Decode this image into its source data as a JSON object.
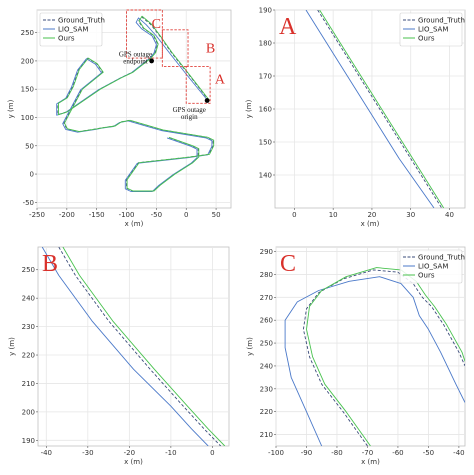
{
  "figure": {
    "colors": {
      "ground_truth": "#3a4b7a",
      "lio_sam": "#4b79c9",
      "ours": "#48c24e",
      "highlight": "#e0403a",
      "grid": "#e6e6e6",
      "frame": "#c0c0c0"
    }
  },
  "chart_data": [
    {
      "id": "overview",
      "type": "line",
      "xlabel": "x (m)",
      "ylabel": "y (m)",
      "xlim": [
        -250,
        75
      ],
      "ylim": [
        -60,
        290
      ],
      "xticks": [
        -250,
        -200,
        -150,
        -100,
        -50,
        0,
        50
      ],
      "yticks": [
        -50,
        0,
        50,
        100,
        150,
        200,
        250
      ],
      "grid": true,
      "legend": {
        "position": "top-left",
        "entries": [
          {
            "label": "Ground_Truth",
            "style": "dashed",
            "color_key": "ground_truth"
          },
          {
            "label": "LIO_SAM",
            "style": "solid",
            "color_key": "lio_sam"
          },
          {
            "label": "Ours",
            "style": "solid",
            "color_key": "ours"
          }
        ]
      },
      "annotations": [
        {
          "text": "GPS outage",
          "x": -85,
          "y": 208
        },
        {
          "text": "endpoint",
          "x": -85,
          "y": 195
        },
        {
          "text": "GPS outage",
          "x": 5,
          "y": 110
        },
        {
          "text": "origin",
          "x": 5,
          "y": 97
        },
        {
          "text": "C",
          "x": -58,
          "y": 258
        },
        {
          "text": "B",
          "x": 33,
          "y": 215
        },
        {
          "text": "A",
          "x": 48,
          "y": 160
        }
      ],
      "markers": [
        {
          "name": "gps-outage-endpoint",
          "x": -58,
          "y": 200
        },
        {
          "name": "gps-outage-origin",
          "x": 35,
          "y": 130
        }
      ],
      "highlight_boxes": [
        {
          "label": "C",
          "x": [
            -100,
            -40
          ],
          "y": [
            205,
            290
          ]
        },
        {
          "label": "B",
          "x": [
            -40,
            3
          ],
          "y": [
            190,
            255
          ]
        },
        {
          "label": "A",
          "x": [
            0,
            40
          ],
          "y": [
            125,
            190
          ]
        }
      ],
      "series": [
        {
          "name": "Ground_Truth",
          "color_key": "ground_truth",
          "style": "dashed",
          "x": [
            38,
            5,
            -25,
            -45,
            -60,
            -75,
            -80,
            -72,
            -55,
            -48,
            -52,
            -60,
            -90,
            -110,
            -145,
            -200,
            -215,
            -215,
            -200,
            -190,
            -180,
            -165,
            -150,
            -140,
            -175,
            -195,
            -205,
            -200,
            -180,
            -150,
            -140,
            -120,
            -110,
            -95,
            -40,
            35,
            45,
            45,
            38,
            5,
            -80,
            -100,
            -100,
            -90,
            -55,
            -45,
            -20,
            10,
            20,
            20,
            10,
            -30
          ],
          "y": [
            130,
            175,
            215,
            245,
            265,
            278,
            270,
            258,
            245,
            230,
            215,
            205,
            180,
            170,
            150,
            110,
            105,
            125,
            135,
            155,
            185,
            205,
            195,
            180,
            150,
            110,
            90,
            80,
            75,
            80,
            82,
            85,
            92,
            95,
            78,
            65,
            60,
            50,
            35,
            30,
            20,
            -10,
            -25,
            -30,
            -30,
            -20,
            0,
            20,
            30,
            45,
            50,
            65
          ]
        },
        {
          "name": "LIO_SAM",
          "color_key": "lio_sam",
          "style": "solid",
          "x": [
            36,
            2,
            -28,
            -50,
            -67,
            -80,
            -84,
            -75,
            -57,
            -50,
            -54,
            -62,
            -92,
            -112,
            -147,
            -202,
            -217,
            -217,
            -202,
            -192,
            -182,
            -167,
            -152,
            -142,
            -177,
            -197,
            -207,
            -202,
            -182,
            -152,
            -142,
            -122,
            -112,
            -97,
            -42,
            33,
            43,
            43,
            36,
            3,
            -82,
            -102,
            -102,
            -92,
            -57,
            -47,
            -22,
            8,
            18,
            18,
            8,
            -32
          ],
          "y": [
            130,
            174,
            214,
            244,
            264,
            276,
            268,
            257,
            244,
            229,
            214,
            204,
            179,
            169,
            149,
            109,
            104,
            124,
            134,
            154,
            184,
            204,
            194,
            179,
            149,
            109,
            89,
            79,
            74,
            79,
            81,
            84,
            91,
            94,
            77,
            64,
            59,
            49,
            34,
            29,
            19,
            -11,
            -26,
            -31,
            -31,
            -21,
            -1,
            19,
            29,
            44,
            49,
            64
          ]
        },
        {
          "name": "Ours",
          "color_key": "ours",
          "style": "solid",
          "x": [
            39,
            6,
            -24,
            -44,
            -59,
            -74,
            -79,
            -71,
            -54,
            -47,
            -51,
            -59,
            -89,
            -109,
            -144,
            -199,
            -214,
            -214,
            -199,
            -189,
            -179,
            -164,
            -149,
            -139,
            -174,
            -194,
            -204,
            -199,
            -179,
            -149,
            -139,
            -119,
            -109,
            -94,
            -39,
            36,
            46,
            46,
            39,
            6,
            -79,
            -99,
            -99,
            -89,
            -54,
            -44,
            -19,
            11,
            21,
            21,
            11,
            -29
          ],
          "y": [
            130,
            175,
            215,
            245,
            266,
            279,
            271,
            258,
            245,
            230,
            215,
            205,
            180,
            170,
            150,
            110,
            105,
            125,
            135,
            155,
            185,
            205,
            195,
            180,
            150,
            110,
            90,
            80,
            75,
            80,
            82,
            85,
            92,
            95,
            78,
            65,
            60,
            50,
            35,
            30,
            20,
            -10,
            -25,
            -30,
            -30,
            -20,
            0,
            20,
            30,
            45,
            50,
            65
          ]
        }
      ]
    },
    {
      "id": "zoom-a",
      "panel_letter": "A",
      "type": "line",
      "xlabel": "x (m)",
      "ylabel": "y (m)",
      "xlim": [
        -5,
        44
      ],
      "ylim": [
        130,
        190
      ],
      "xticks": [
        0,
        10,
        20,
        30,
        40
      ],
      "yticks": [
        140,
        150,
        160,
        170,
        180,
        190
      ],
      "grid": true,
      "legend": {
        "position": "top-right",
        "entries": [
          {
            "label": "Ground_Truth",
            "style": "dashed",
            "color_key": "ground_truth"
          },
          {
            "label": "LIO_SAM",
            "style": "solid",
            "color_key": "lio_sam"
          },
          {
            "label": "Ours",
            "style": "solid",
            "color_key": "ours"
          }
        ]
      },
      "series": [
        {
          "name": "Ground_Truth",
          "color_key": "ground_truth",
          "style": "dashed",
          "x": [
            6,
            14,
            22,
            30,
            38
          ],
          "y": [
            190,
            175,
            160,
            145,
            130
          ]
        },
        {
          "name": "LIO_SAM",
          "color_key": "lio_sam",
          "style": "solid",
          "x": [
            3,
            11,
            19,
            27,
            36
          ],
          "y": [
            190,
            175,
            160,
            145,
            130
          ]
        },
        {
          "name": "Ours",
          "color_key": "ours",
          "style": "solid",
          "x": [
            6.5,
            14.5,
            22.5,
            30.5,
            38.5
          ],
          "y": [
            190,
            175,
            160,
            145,
            130
          ]
        }
      ]
    },
    {
      "id": "zoom-b",
      "panel_letter": "B",
      "type": "line",
      "xlabel": "x (m)",
      "ylabel": "y (m)",
      "xlim": [
        -42,
        4
      ],
      "ylim": [
        188,
        258
      ],
      "xticks": [
        -40,
        -30,
        -20,
        -10,
        0
      ],
      "yticks": [
        190,
        200,
        210,
        220,
        230,
        240,
        250
      ],
      "grid": true,
      "series": [
        {
          "name": "Ground_Truth",
          "color_key": "ground_truth",
          "style": "dashed",
          "x": [
            -37,
            -33,
            -25,
            -15,
            -7,
            -2,
            2
          ],
          "y": [
            258,
            248,
            232,
            215,
            202,
            194,
            188
          ]
        },
        {
          "name": "LIO_SAM",
          "color_key": "lio_sam",
          "style": "solid",
          "x": [
            -41,
            -37,
            -29,
            -19,
            -10,
            -5,
            -1
          ],
          "y": [
            258,
            248,
            232,
            215,
            202,
            194,
            188
          ]
        },
        {
          "name": "Ours",
          "color_key": "ours",
          "style": "solid",
          "x": [
            -36,
            -32,
            -24,
            -14,
            -6,
            -1,
            3
          ],
          "y": [
            258,
            248,
            232,
            215,
            202,
            194,
            188
          ]
        }
      ]
    },
    {
      "id": "zoom-c",
      "panel_letter": "C",
      "type": "line",
      "xlabel": "x (m)",
      "ylabel": "y (m)",
      "xlim": [
        -100,
        -38
      ],
      "ylim": [
        205,
        292
      ],
      "xticks": [
        -100,
        -90,
        -80,
        -70,
        -60,
        -50,
        -40
      ],
      "yticks": [
        210,
        220,
        230,
        240,
        250,
        260,
        270,
        280,
        290
      ],
      "grid": true,
      "legend": {
        "position": "top-right",
        "entries": [
          {
            "label": "Ground_Truth",
            "style": "dashed",
            "color_key": "ground_truth"
          },
          {
            "label": "LIO_SAM",
            "style": "solid",
            "color_key": "lio_sam"
          },
          {
            "label": "Ours",
            "style": "solid",
            "color_key": "ours"
          }
        ]
      },
      "series": [
        {
          "name": "Ground_Truth",
          "color_key": "ground_truth",
          "style": "dashed",
          "x": [
            -70,
            -78,
            -85,
            -89,
            -91,
            -90,
            -86,
            -78,
            -68,
            -60,
            -55,
            -52,
            -49,
            -45,
            -40,
            -38
          ],
          "y": [
            205,
            220,
            232,
            244,
            256,
            265,
            272,
            278,
            282,
            281,
            276,
            270,
            266,
            258,
            246,
            240
          ]
        },
        {
          "name": "LIO_SAM",
          "color_key": "lio_sam",
          "style": "solid",
          "x": [
            -85,
            -90,
            -95,
            -97,
            -97,
            -93,
            -86,
            -76,
            -66,
            -59,
            -55,
            -53,
            -50,
            -46,
            -41,
            -38
          ],
          "y": [
            205,
            220,
            235,
            248,
            260,
            268,
            273,
            277,
            279,
            276,
            270,
            262,
            256,
            246,
            232,
            224
          ]
        },
        {
          "name": "Ours",
          "color_key": "ours",
          "style": "solid",
          "x": [
            -69,
            -77,
            -84,
            -88,
            -90,
            -89,
            -85,
            -77,
            -67,
            -59,
            -54,
            -51,
            -48,
            -44,
            -39,
            -38
          ],
          "y": [
            205,
            220,
            232,
            244,
            256,
            266,
            273,
            279,
            283,
            282,
            277,
            271,
            266,
            258,
            246,
            242
          ]
        }
      ]
    }
  ]
}
